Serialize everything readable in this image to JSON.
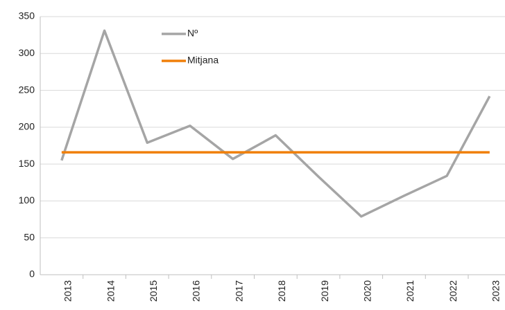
{
  "chart_data": {
    "type": "line",
    "categories": [
      "2013",
      "2014",
      "2015",
      "2016",
      "2017",
      "2018",
      "2019",
      "2020",
      "2021",
      "2022",
      "2023"
    ],
    "series": [
      {
        "name": "Nº",
        "color": "#a5a5a5",
        "values": [
          155,
          331,
          179,
          202,
          157,
          189,
          133,
          79,
          107,
          134,
          242
        ]
      },
      {
        "name": "Mitjana",
        "color": "#f07f09",
        "values": [
          166,
          166,
          166,
          166,
          166,
          166,
          166,
          166,
          166,
          166,
          166
        ]
      }
    ],
    "ylim": [
      0,
      350
    ],
    "yticks": [
      0,
      50,
      100,
      150,
      200,
      250,
      300,
      350
    ],
    "grid": true
  }
}
